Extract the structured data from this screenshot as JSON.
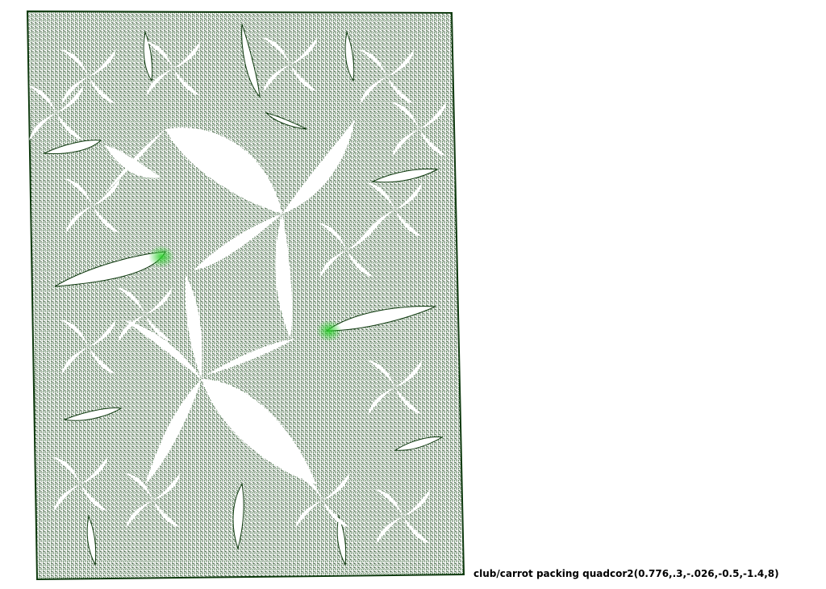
{
  "caption": "club/carrot packing quadcor2(0.776,.3,-.026,-0.5,-1.4,8)",
  "colors": {
    "background": "#ffffff",
    "fractal_dark": "#0f3a0f",
    "fractal_mid": "#1e5a1e",
    "fractal_bright": "#22b022",
    "caption_text": "#000000"
  }
}
